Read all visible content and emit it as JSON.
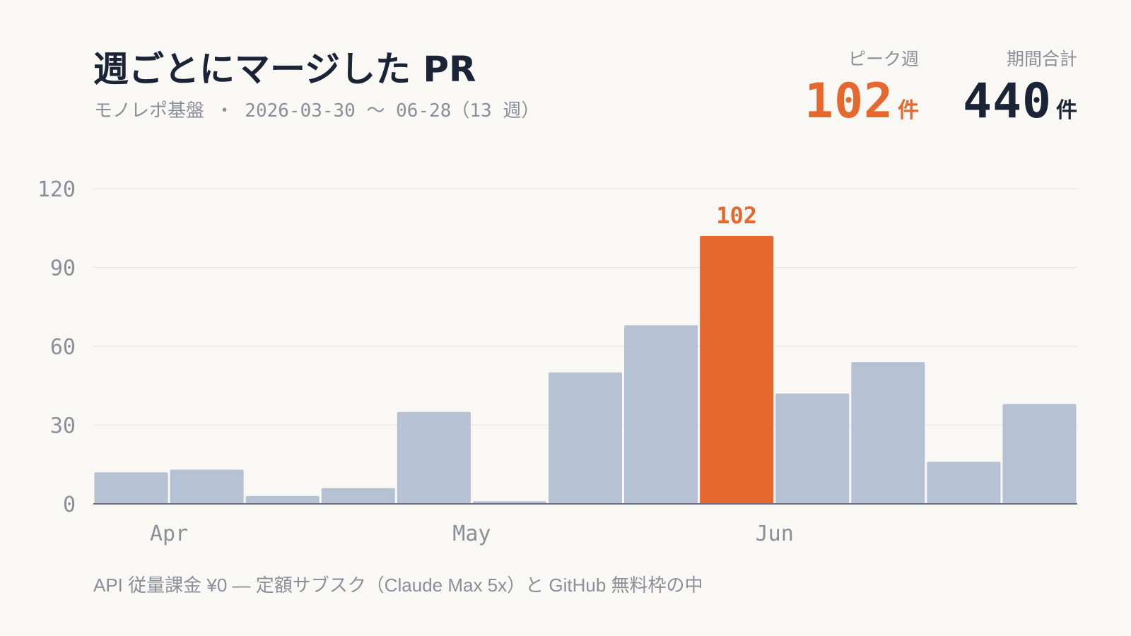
{
  "header": {
    "title": "週ごとにマージした PR",
    "subtitle": "モノレポ基盤 ・ 2026-03-30 〜 06-28（13 週）"
  },
  "kpis": {
    "peak": {
      "label": "ピーク週",
      "value": "102",
      "unit": "件"
    },
    "total": {
      "label": "期間合計",
      "value": "440",
      "unit": "件"
    }
  },
  "colors": {
    "bar": "#b6c1d4",
    "highlight": "#e5682e",
    "grid": "#e6e4df",
    "axis": "#6b7080",
    "tick_text": "#8a8f99"
  },
  "chart_data": {
    "type": "bar",
    "title": "週ごとにマージした PR",
    "values": [
      12,
      13,
      3,
      6,
      35,
      1,
      50,
      68,
      102,
      42,
      54,
      16,
      38
    ],
    "highlight_index": 8,
    "highlight_label": "102",
    "ylim": [
      0,
      120
    ],
    "yticks": [
      "0",
      "30",
      "60",
      "90",
      "120"
    ],
    "xtick_labels": [
      {
        "label": "Apr",
        "at_bar": 1
      },
      {
        "label": "May",
        "at_bar": 5
      },
      {
        "label": "Jun",
        "at_bar": 9
      }
    ],
    "grid": true
  },
  "footer": {
    "note": "API 従量課金 ¥0 — 定額サブスク（Claude Max 5x）と GitHub 無料枠の中"
  }
}
